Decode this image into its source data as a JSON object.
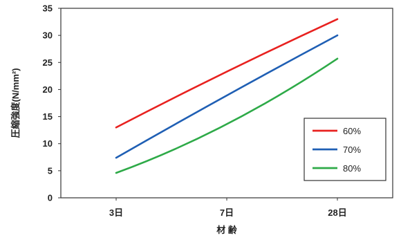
{
  "chart_data": {
    "type": "line",
    "title": "",
    "xlabel": "材 齢",
    "ylabel": "圧縮強度(N/mm²)",
    "categories": [
      "3日",
      "7日",
      "28日"
    ],
    "ylim": [
      0,
      35
    ],
    "yticks": [
      0,
      5,
      10,
      15,
      20,
      25,
      30,
      35
    ],
    "grid": "vertical",
    "legend_position": "right",
    "series": [
      {
        "name": "60%",
        "color": "#e8211f",
        "values": [
          13.0,
          23.3,
          33.0
        ]
      },
      {
        "name": "70%",
        "color": "#1f5fb4",
        "values": [
          7.4,
          18.9,
          30.0
        ]
      },
      {
        "name": "80%",
        "color": "#2eaa48",
        "values": [
          4.6,
          13.6,
          25.7
        ]
      }
    ]
  }
}
